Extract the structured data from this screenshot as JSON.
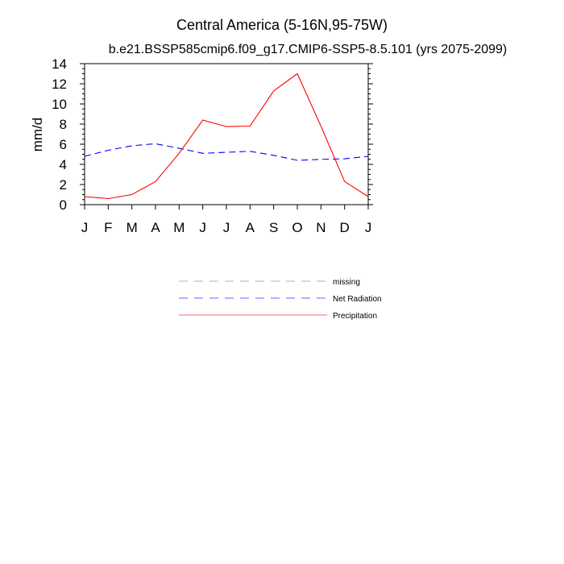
{
  "chart_data": {
    "type": "line",
    "title": "Central America (5-16N,95-75W)",
    "subtitle": "b.e21.BSSP585cmip6.f09_g17.CMIP6-SSP5-8.5.101 (yrs 2075-2099)",
    "xlabel": "",
    "ylabel": "mm/d",
    "categories": [
      "J",
      "F",
      "M",
      "A",
      "M",
      "J",
      "J",
      "A",
      "S",
      "O",
      "N",
      "D",
      "J"
    ],
    "ylim": [
      0,
      14
    ],
    "yticks": [
      0,
      2,
      4,
      6,
      8,
      10,
      12,
      14
    ],
    "grid": false,
    "legend_position": "below-plot",
    "series": [
      {
        "name": "Net Radiation",
        "color": "#0000ff",
        "dash": "dashed",
        "values": [
          4.8,
          5.4,
          5.85,
          6.05,
          5.6,
          5.1,
          5.2,
          5.3,
          4.9,
          4.4,
          4.5,
          4.55,
          4.8
        ]
      },
      {
        "name": "Precipitation",
        "color": "#ff0000",
        "dash": "solid",
        "values": [
          0.8,
          0.6,
          1.0,
          2.3,
          5.1,
          8.4,
          7.75,
          7.8,
          11.3,
          13.0,
          7.8,
          2.3,
          0.8
        ]
      }
    ],
    "legend": [
      {
        "label": "missing",
        "color": "#7f7f7f",
        "dash": "dashed"
      },
      {
        "label": "Net Radiation",
        "color": "#0000ff",
        "dash": "dashed"
      },
      {
        "label": "Precipitation",
        "color": "#ff0000",
        "dash": "solid"
      }
    ]
  }
}
